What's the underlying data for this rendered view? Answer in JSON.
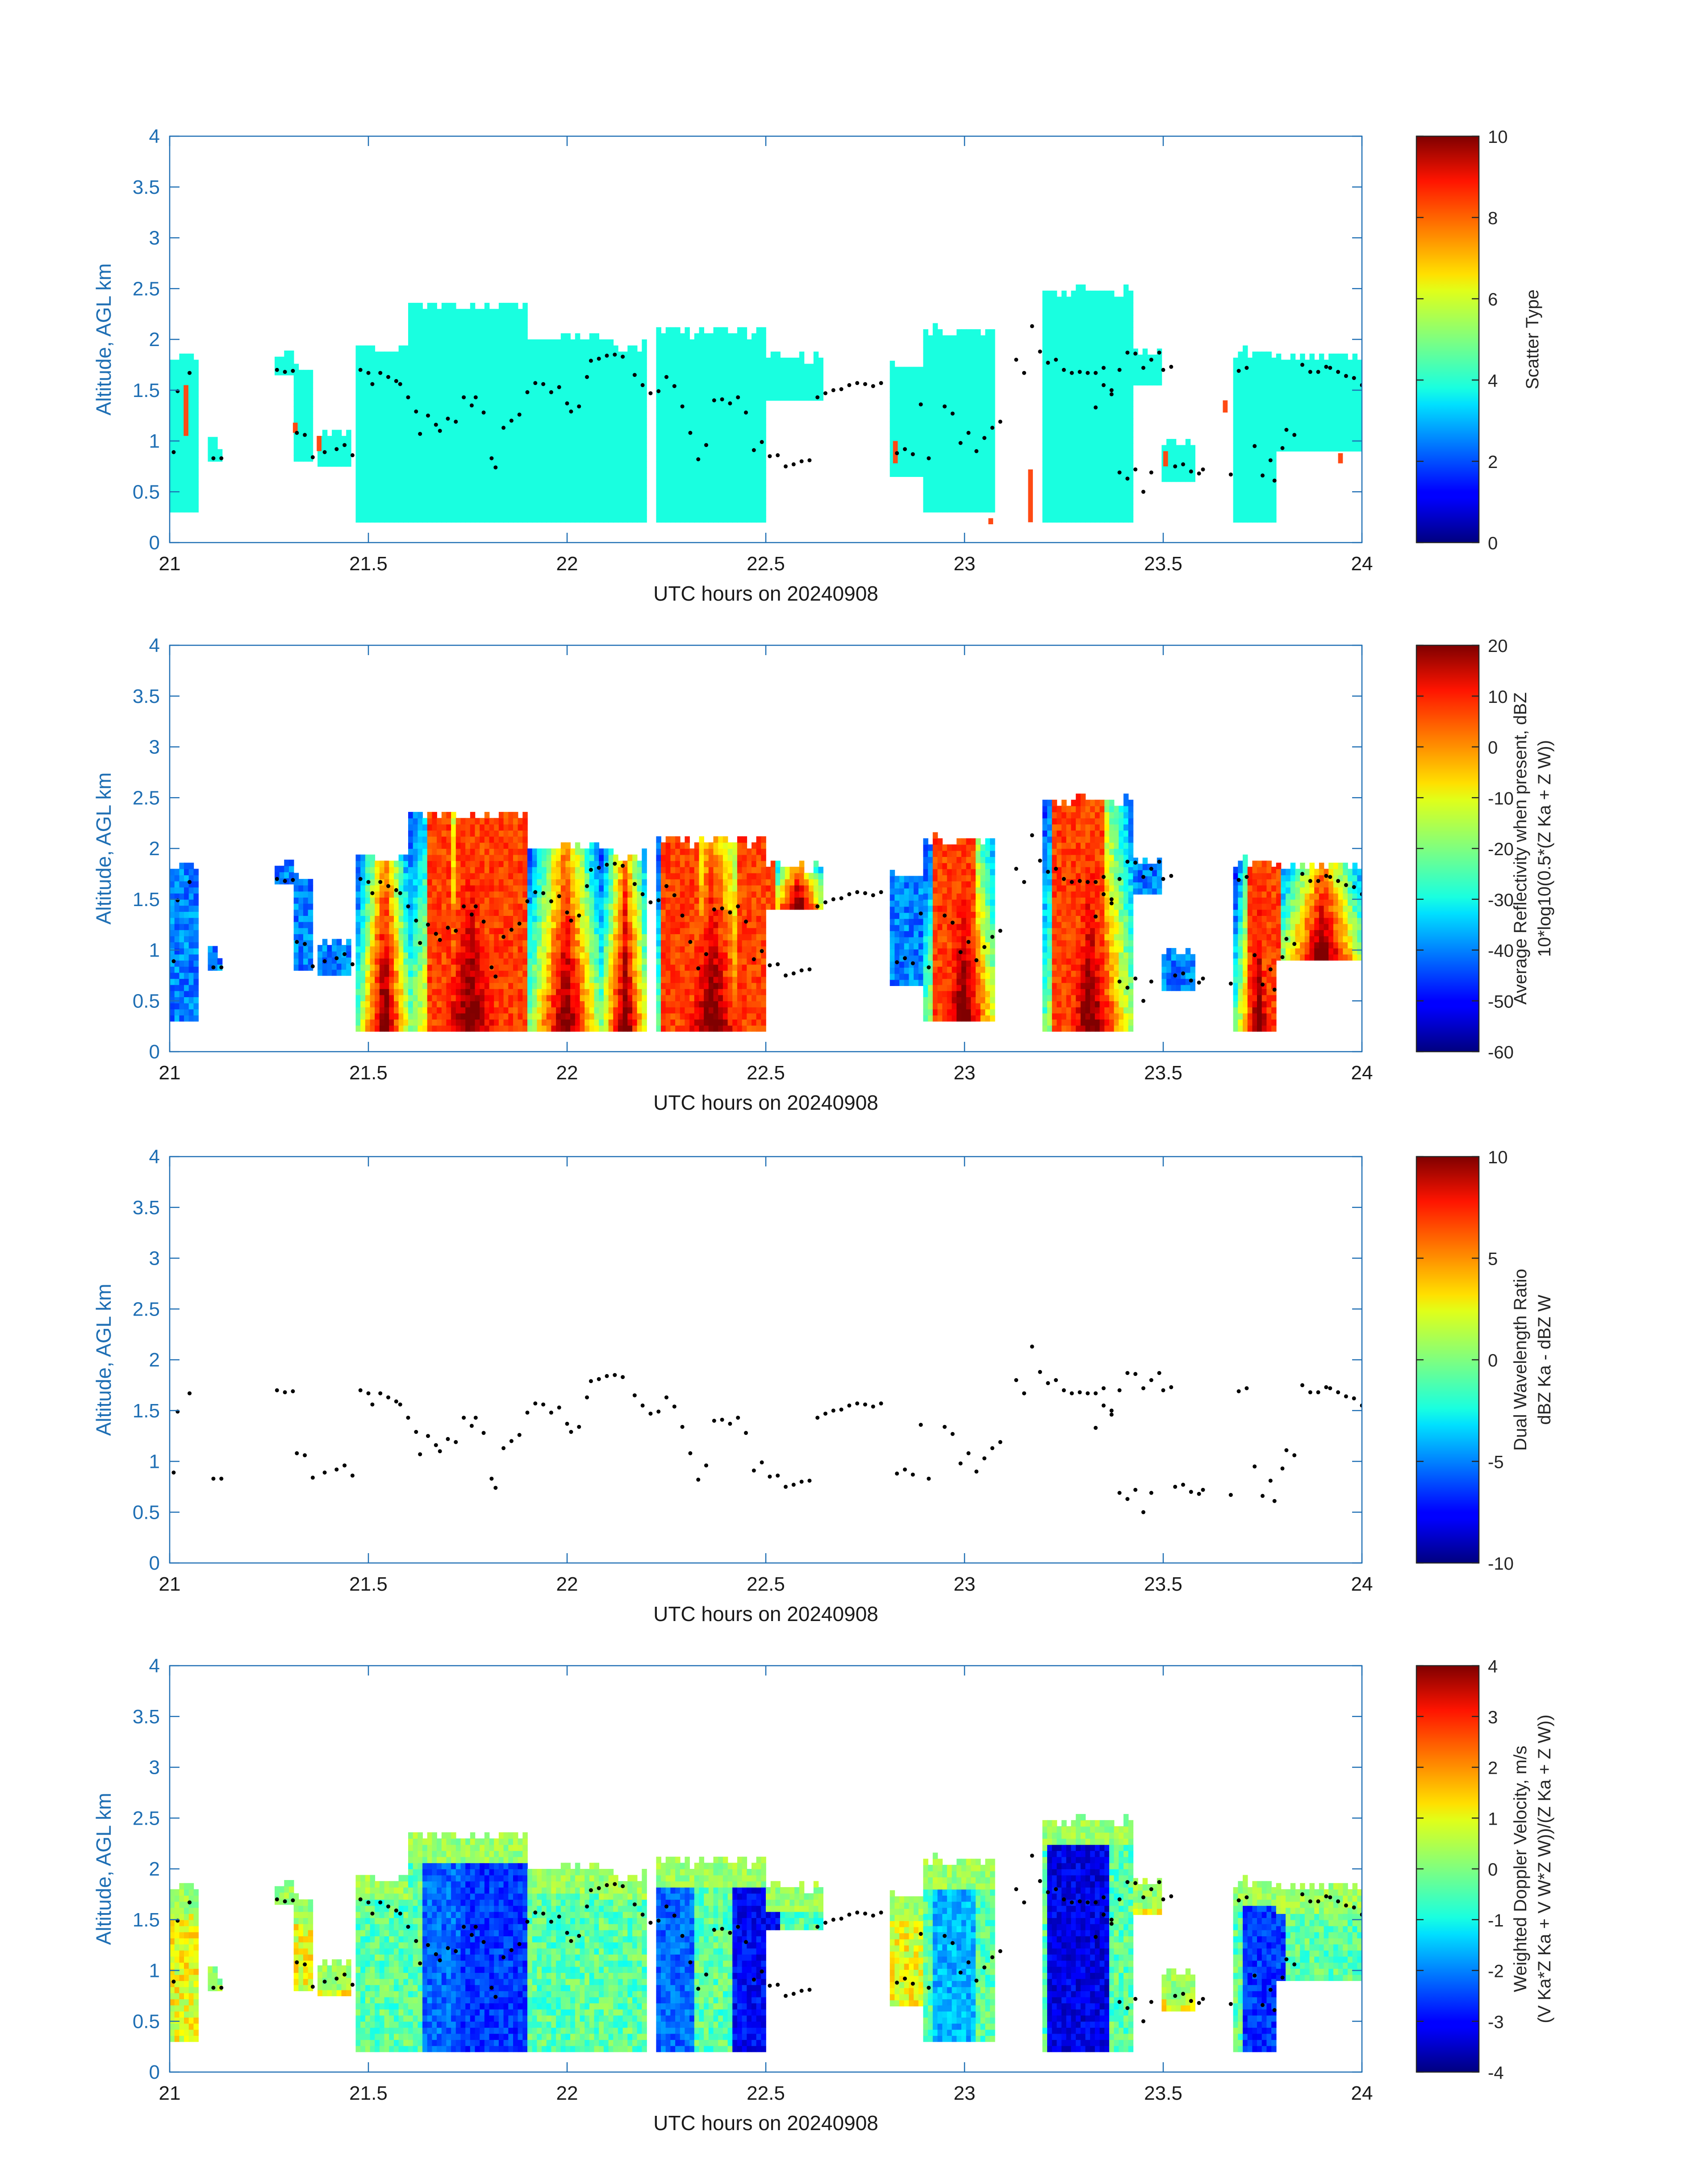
{
  "shared_axes": {
    "xlabel": "UTC hours on 20240908",
    "ylabel": "Altitude, AGL km",
    "xlim": [
      21,
      24
    ],
    "ylim": [
      0,
      4
    ],
    "xticks": [
      "21",
      "21.5",
      "22",
      "22.5",
      "23",
      "23.5",
      "24"
    ],
    "yticks": [
      "0",
      "0.5",
      "1",
      "1.5",
      "2",
      "2.5",
      "3",
      "3.5",
      "4"
    ],
    "axis_color": "#1f6fb4",
    "tick_label_color": "#1a1a1a"
  },
  "panels": [
    {
      "field": "scatter_type",
      "colorbar": {
        "label_lines": [
          "Scatter Type"
        ],
        "ticks": [
          "0",
          "2",
          "4",
          "6",
          "8",
          "10"
        ],
        "range": [
          0,
          10
        ]
      },
      "palette": {
        "main": "#19ffe0",
        "alt": "#ff4a14",
        "dots": "#000000"
      }
    },
    {
      "field": "reflectivity",
      "colorbar": {
        "label_lines": [
          "Average Reflectivity when present, dBZ",
          "10*log10(0.5*(Z Ka + Z W))"
        ],
        "ticks": [
          "-60",
          "-50",
          "-40",
          "-30",
          "-20",
          "-10",
          "0",
          "10",
          "20"
        ],
        "range": [
          -60,
          20
        ]
      }
    },
    {
      "field": "dwr",
      "colorbar": {
        "label_lines": [
          "Dual Wavelength Ratio",
          "dBZ Ka - dBZ W"
        ],
        "ticks": [
          "-10",
          "-5",
          "0",
          "5",
          "10"
        ],
        "range": [
          -10,
          10
        ]
      }
    },
    {
      "field": "doppler_velocity",
      "colorbar": {
        "label_lines": [
          "Weighted Doppler Velocity, m/s",
          "(V Ka*Z Ka + V W*Z W))/(Z Ka + Z W))"
        ],
        "ticks": [
          "-4",
          "-3",
          "-2",
          "-1",
          "0",
          "1",
          "2",
          "3",
          "4"
        ],
        "range": [
          -4,
          4
        ]
      }
    }
  ],
  "chart_data": {
    "type": "heatmap",
    "x_unit": "UTC hours",
    "y_unit": "km AGL",
    "cloud_segments": [
      {
        "t0": 21.0,
        "t1": 21.07,
        "bottom": 0.3,
        "top": 1.8
      },
      {
        "t0": 21.1,
        "t1": 21.13,
        "bottom": 0.8,
        "top": 0.95
      },
      {
        "t0": 21.27,
        "t1": 21.31,
        "bottom": 1.65,
        "top": 1.85
      },
      {
        "t0": 21.31,
        "t1": 21.36,
        "bottom": 0.8,
        "top": 1.7
      },
      {
        "t0": 21.37,
        "t1": 21.46,
        "bottom": 0.75,
        "top": 1.05
      },
      {
        "t0": 21.47,
        "t1": 21.6,
        "bottom": 0.2,
        "top": 1.9
      },
      {
        "t0": 21.6,
        "t1": 21.9,
        "bottom": 0.2,
        "top": 2.3
      },
      {
        "t0": 21.9,
        "t1": 22.08,
        "bottom": 0.2,
        "top": 2.0
      },
      {
        "t0": 22.08,
        "t1": 22.2,
        "bottom": 0.2,
        "top": 1.9
      },
      {
        "t0": 22.22,
        "t1": 22.5,
        "bottom": 0.2,
        "top": 2.05
      },
      {
        "t0": 22.5,
        "t1": 22.65,
        "bottom": 1.4,
        "top": 1.8
      },
      {
        "t0": 22.81,
        "t1": 22.9,
        "bottom": 0.65,
        "top": 1.7
      },
      {
        "t0": 22.9,
        "t1": 23.08,
        "bottom": 0.3,
        "top": 2.05
      },
      {
        "t0": 23.2,
        "t1": 23.42,
        "bottom": 0.2,
        "top": 2.45
      },
      {
        "t0": 23.42,
        "t1": 23.5,
        "bottom": 1.55,
        "top": 1.85
      },
      {
        "t0": 23.5,
        "t1": 23.58,
        "bottom": 0.6,
        "top": 0.95
      },
      {
        "t0": 23.68,
        "t1": 23.79,
        "bottom": 0.2,
        "top": 1.85
      },
      {
        "t0": 23.79,
        "t1": 24.0,
        "bottom": 0.9,
        "top": 1.8
      }
    ],
    "alt_type_cells": [
      {
        "t": 21.035,
        "bottom": 1.05,
        "top": 1.55
      },
      {
        "t": 21.31,
        "bottom": 1.08,
        "top": 1.18
      },
      {
        "t": 21.37,
        "bottom": 0.9,
        "top": 1.05
      },
      {
        "t": 22.82,
        "bottom": 0.78,
        "top": 1.0
      },
      {
        "t": 23.06,
        "bottom": 0.18,
        "top": 0.24
      },
      {
        "t": 23.16,
        "bottom": 0.2,
        "top": 0.72
      },
      {
        "t": 23.5,
        "bottom": 0.75,
        "top": 0.9
      },
      {
        "t": 23.65,
        "bottom": 1.28,
        "top": 1.4
      },
      {
        "t": 23.94,
        "bottom": 0.78,
        "top": 0.88
      }
    ],
    "cloud_base_points": [
      [
        21.01,
        0.89
      ],
      [
        21.02,
        1.49
      ],
      [
        21.05,
        1.67
      ],
      [
        21.11,
        0.83
      ],
      [
        21.13,
        0.83
      ],
      [
        21.27,
        1.7
      ],
      [
        21.29,
        1.68
      ],
      [
        21.31,
        1.69
      ],
      [
        21.32,
        1.08
      ],
      [
        21.34,
        1.06
      ],
      [
        21.36,
        0.84
      ],
      [
        21.39,
        0.89
      ],
      [
        21.42,
        0.92
      ],
      [
        21.44,
        0.96
      ],
      [
        21.46,
        0.86
      ],
      [
        21.48,
        1.7
      ],
      [
        21.5,
        1.67
      ],
      [
        21.51,
        1.56
      ],
      [
        21.53,
        1.67
      ],
      [
        21.55,
        1.63
      ],
      [
        21.57,
        1.59
      ],
      [
        21.58,
        1.56
      ],
      [
        21.6,
        1.43
      ],
      [
        21.62,
        1.29
      ],
      [
        21.63,
        1.07
      ],
      [
        21.65,
        1.25
      ],
      [
        21.67,
        1.16
      ],
      [
        21.68,
        1.1
      ],
      [
        21.7,
        1.22
      ],
      [
        21.72,
        1.19
      ],
      [
        21.74,
        1.43
      ],
      [
        21.76,
        1.35
      ],
      [
        21.77,
        1.43
      ],
      [
        21.79,
        1.28
      ],
      [
        21.81,
        0.83
      ],
      [
        21.82,
        0.74
      ],
      [
        21.84,
        1.13
      ],
      [
        21.86,
        1.2
      ],
      [
        21.88,
        1.26
      ],
      [
        21.9,
        1.48
      ],
      [
        21.92,
        1.57
      ],
      [
        21.94,
        1.56
      ],
      [
        21.96,
        1.48
      ],
      [
        21.98,
        1.53
      ],
      [
        22.0,
        1.37
      ],
      [
        22.01,
        1.29
      ],
      [
        22.03,
        1.34
      ],
      [
        22.05,
        1.63
      ],
      [
        22.06,
        1.79
      ],
      [
        22.08,
        1.81
      ],
      [
        22.1,
        1.84
      ],
      [
        22.12,
        1.85
      ],
      [
        22.14,
        1.83
      ],
      [
        22.17,
        1.65
      ],
      [
        22.19,
        1.55
      ],
      [
        22.21,
        1.47
      ],
      [
        22.23,
        1.49
      ],
      [
        22.25,
        1.63
      ],
      [
        22.27,
        1.54
      ],
      [
        22.29,
        1.34
      ],
      [
        22.31,
        1.08
      ],
      [
        22.33,
        0.82
      ],
      [
        22.35,
        0.96
      ],
      [
        22.37,
        1.4
      ],
      [
        22.39,
        1.41
      ],
      [
        22.41,
        1.37
      ],
      [
        22.43,
        1.43
      ],
      [
        22.45,
        1.28
      ],
      [
        22.47,
        0.91
      ],
      [
        22.49,
        0.99
      ],
      [
        22.51,
        0.85
      ],
      [
        22.53,
        0.86
      ],
      [
        22.55,
        0.75
      ],
      [
        22.57,
        0.77
      ],
      [
        22.59,
        0.8
      ],
      [
        22.61,
        0.81
      ],
      [
        22.63,
        1.43
      ],
      [
        22.65,
        1.47
      ],
      [
        22.67,
        1.5
      ],
      [
        22.69,
        1.51
      ],
      [
        22.71,
        1.55
      ],
      [
        22.73,
        1.57
      ],
      [
        22.75,
        1.56
      ],
      [
        22.77,
        1.54
      ],
      [
        22.79,
        1.57
      ],
      [
        22.83,
        0.88
      ],
      [
        22.85,
        0.92
      ],
      [
        22.87,
        0.87
      ],
      [
        22.89,
        1.36
      ],
      [
        22.91,
        0.83
      ],
      [
        22.95,
        1.34
      ],
      [
        22.97,
        1.27
      ],
      [
        22.99,
        0.98
      ],
      [
        23.01,
        1.08
      ],
      [
        23.03,
        0.9
      ],
      [
        23.05,
        1.03
      ],
      [
        23.07,
        1.13
      ],
      [
        23.09,
        1.19
      ],
      [
        23.13,
        1.8
      ],
      [
        23.15,
        1.67
      ],
      [
        23.17,
        2.13
      ],
      [
        23.19,
        1.88
      ],
      [
        23.21,
        1.77
      ],
      [
        23.23,
        1.8
      ],
      [
        23.25,
        1.7
      ],
      [
        23.27,
        1.67
      ],
      [
        23.29,
        1.68
      ],
      [
        23.31,
        1.67
      ],
      [
        23.33,
        1.67
      ],
      [
        23.35,
        1.72
      ],
      [
        23.37,
        1.46
      ],
      [
        23.39,
        0.69
      ],
      [
        23.41,
        0.63
      ],
      [
        23.43,
        0.72
      ],
      [
        23.45,
        0.5
      ],
      [
        23.47,
        0.69
      ],
      [
        23.33,
        1.33
      ],
      [
        23.35,
        1.55
      ],
      [
        23.37,
        1.5
      ],
      [
        23.39,
        1.7
      ],
      [
        23.41,
        1.87
      ],
      [
        23.43,
        1.86
      ],
      [
        23.45,
        1.72
      ],
      [
        23.47,
        1.8
      ],
      [
        23.49,
        1.87
      ],
      [
        23.5,
        1.7
      ],
      [
        23.52,
        1.73
      ],
      [
        23.53,
        0.75
      ],
      [
        23.55,
        0.77
      ],
      [
        23.57,
        0.7
      ],
      [
        23.59,
        0.68
      ],
      [
        23.6,
        0.72
      ],
      [
        23.67,
        0.67
      ],
      [
        23.69,
        1.69
      ],
      [
        23.71,
        1.72
      ],
      [
        23.73,
        0.95
      ],
      [
        23.75,
        0.66
      ],
      [
        23.77,
        0.81
      ],
      [
        23.78,
        0.61
      ],
      [
        23.8,
        0.93
      ],
      [
        23.81,
        1.11
      ],
      [
        23.83,
        1.06
      ],
      [
        23.85,
        1.75
      ],
      [
        23.87,
        1.68
      ],
      [
        23.89,
        1.68
      ],
      [
        23.91,
        1.73
      ],
      [
        23.92,
        1.72
      ],
      [
        23.94,
        1.68
      ],
      [
        23.96,
        1.64
      ],
      [
        23.98,
        1.62
      ],
      [
        24.0,
        1.55
      ]
    ]
  }
}
